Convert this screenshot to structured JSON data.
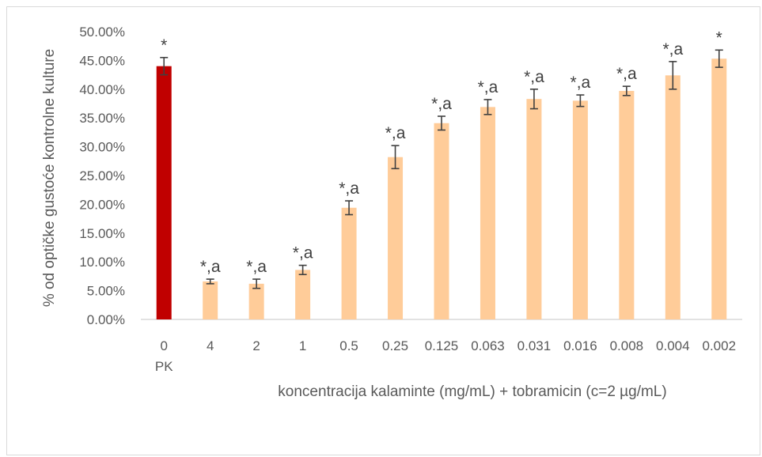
{
  "chart_data": {
    "type": "bar",
    "categories": [
      "0",
      "4",
      "2",
      "1",
      "0.5",
      "0.25",
      "0.125",
      "0.063",
      "0.031",
      "0.016",
      "0.008",
      "0.004",
      "0.002"
    ],
    "sub_labels": [
      "PK",
      "",
      "",
      "",
      "",
      "",
      "",
      "",
      "",
      "",
      "",
      "",
      ""
    ],
    "values": [
      0.44,
      0.066,
      0.062,
      0.086,
      0.194,
      0.282,
      0.341,
      0.369,
      0.383,
      0.38,
      0.397,
      0.424,
      0.453
    ],
    "errors": [
      0.015,
      0.004,
      0.008,
      0.008,
      0.012,
      0.02,
      0.012,
      0.013,
      0.017,
      0.01,
      0.008,
      0.024,
      0.015
    ],
    "significance": [
      "*",
      "*,a",
      "*,a",
      "*,a",
      "*,a",
      "*,a",
      "*,a",
      "*,a",
      "*,a",
      "*,a",
      "*,a",
      "*,a",
      "*"
    ],
    "yticks": [
      "0.00%",
      "5.00%",
      "10.00%",
      "15.00%",
      "20.00%",
      "25.00%",
      "30.00%",
      "35.00%",
      "40.00%",
      "45.00%",
      "50.00%"
    ],
    "ylim": [
      0,
      0.5
    ],
    "xlabel": "koncentracija kalaminte (mg/mL) + tobramicin (c=2 µg/mL)",
    "ylabel": "% od optičke gustoće kontrolne kulture",
    "grid": false,
    "legend": "none",
    "colors": {
      "control": "#c00000",
      "treatment": "#ffcc99",
      "error_bar": "#404040",
      "axis": "#d9d9d9"
    }
  }
}
